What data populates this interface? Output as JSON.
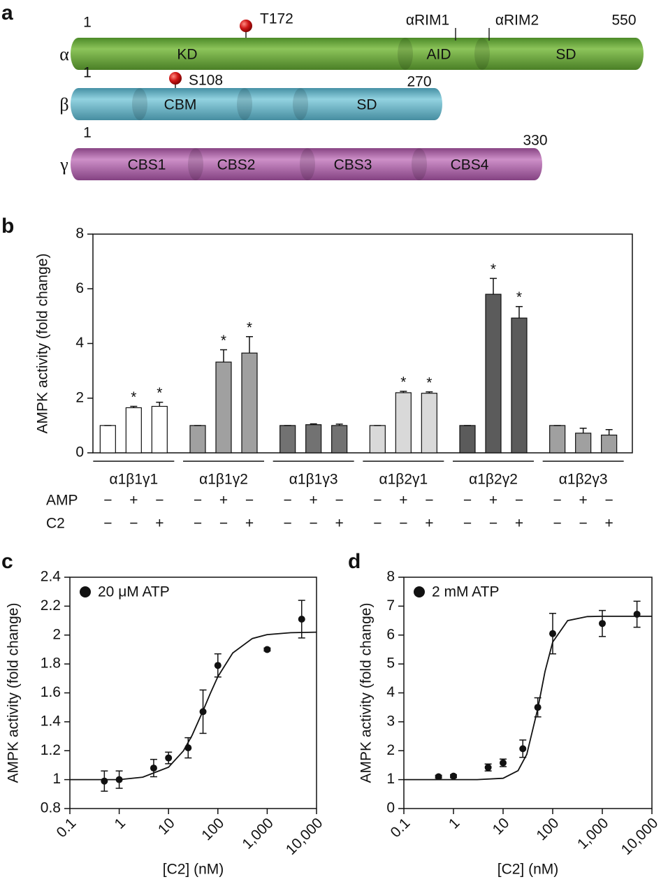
{
  "panel_a": {
    "label": "a",
    "proteins": [
      {
        "name": "α",
        "start": 1,
        "end": 550,
        "domains": [
          "KD",
          "AID",
          "SD"
        ],
        "sites": [
          "T172"
        ],
        "motifs": [
          "αRIM1",
          "αRIM2"
        ]
      },
      {
        "name": "β",
        "start": 1,
        "end": 270,
        "domains": [
          "CBM",
          "SD"
        ],
        "sites": [
          "S108"
        ]
      },
      {
        "name": "γ",
        "start": 1,
        "end": 330,
        "domains": [
          "CBS1",
          "CBS2",
          "CBS3",
          "CBS4"
        ]
      }
    ]
  },
  "chart_data": [
    {
      "type": "grouped_bar",
      "panel_label": "b",
      "ylabel": "AMPK activity (fold change)",
      "ylim": [
        0,
        8
      ],
      "yticks": [
        0,
        2,
        4,
        6,
        8
      ],
      "significance_label": "*",
      "groups": [
        {
          "name": "α1β1γ1",
          "color": "#ffffff",
          "values": [
            1,
            1.65,
            1.7
          ],
          "errors": [
            0,
            0.05,
            0.15
          ],
          "significant": [
            false,
            true,
            true
          ]
        },
        {
          "name": "α1β1γ2",
          "color": "#a0a0a0",
          "values": [
            1,
            3.32,
            3.65
          ],
          "errors": [
            0,
            0.45,
            0.6
          ],
          "significant": [
            false,
            true,
            true
          ]
        },
        {
          "name": "α1β1γ3",
          "color": "#727272",
          "values": [
            1,
            1.03,
            1.0
          ],
          "errors": [
            0,
            0.03,
            0.05
          ],
          "significant": [
            false,
            false,
            false
          ]
        },
        {
          "name": "α1β2γ1",
          "color": "#d9d9d9",
          "values": [
            1,
            2.2,
            2.18
          ],
          "errors": [
            0,
            0.05,
            0.05
          ],
          "significant": [
            false,
            true,
            true
          ]
        },
        {
          "name": "α1β2γ2",
          "color": "#5b5b5b",
          "values": [
            1,
            5.8,
            4.93
          ],
          "errors": [
            0,
            0.58,
            0.42
          ],
          "significant": [
            false,
            true,
            true
          ]
        },
        {
          "name": "α1β2γ3",
          "color": "#a0a0a0",
          "values": [
            1,
            0.72,
            0.65
          ],
          "errors": [
            0,
            0.18,
            0.2
          ],
          "significant": [
            false,
            false,
            false
          ]
        }
      ],
      "conditions": [
        {
          "name": "AMP",
          "signs": [
            "−",
            "+",
            "−"
          ]
        },
        {
          "name": "C2",
          "signs": [
            "−",
            "−",
            "+"
          ]
        }
      ]
    },
    {
      "type": "scatter",
      "panel_label": "c",
      "xlabel": "[C2] (nM)",
      "ylabel": "AMPK activity (fold change)",
      "xlog": true,
      "xlim": [
        0.1,
        10000
      ],
      "xticks": [
        0.1,
        1,
        10,
        100,
        {
          "value": 1000,
          "label": "1,000"
        },
        {
          "value": 10000,
          "label": "10,000"
        }
      ],
      "ylim": [
        0.8,
        2.4
      ],
      "yticks": [
        0.8,
        1,
        1.2,
        1.4,
        1.6,
        1.8,
        2,
        2.2,
        2.4
      ],
      "series": [
        {
          "name": "20 μM ATP",
          "color": "#111111",
          "x": [
            0.5,
            1,
            5,
            10,
            25,
            50,
            100,
            1000,
            5000
          ],
          "values": [
            0.99,
            1.0,
            1.08,
            1.15,
            1.22,
            1.47,
            1.79,
            1.9,
            2.11
          ],
          "errors": [
            0.07,
            0.06,
            0.06,
            0.04,
            0.07,
            0.15,
            0.08,
            0.01,
            0.13
          ]
        }
      ],
      "fit": {
        "color": "#111111",
        "x": [
          0.1,
          1,
          3,
          10,
          20,
          30,
          50,
          70,
          100,
          200,
          500,
          1000,
          3000,
          10000
        ],
        "values": [
          1,
          1,
          1.017,
          1.086,
          1.199,
          1.306,
          1.476,
          1.595,
          1.712,
          1.876,
          1.976,
          2.003,
          2.016,
          2.02
        ]
      }
    },
    {
      "type": "scatter",
      "panel_label": "d",
      "xlabel": "[C2] (nM)",
      "ylabel": "AMPK activity (fold change)",
      "xlog": true,
      "xlim": [
        0.1,
        10000
      ],
      "xticks": [
        0.1,
        1,
        10,
        100,
        {
          "value": 1000,
          "label": "1,000"
        },
        {
          "value": 10000,
          "label": "10,000"
        }
      ],
      "ylim": [
        0,
        8
      ],
      "yticks": [
        0,
        1,
        2,
        3,
        4,
        5,
        6,
        7,
        8
      ],
      "series": [
        {
          "name": "2 mM ATP",
          "color": "#111111",
          "x": [
            0.5,
            1,
            5,
            10,
            25,
            50,
            100,
            1000,
            5000
          ],
          "values": [
            1.1,
            1.12,
            1.42,
            1.58,
            2.07,
            3.5,
            6.05,
            6.4,
            6.72
          ],
          "errors": [
            0.05,
            0.05,
            0.12,
            0.13,
            0.3,
            0.33,
            0.7,
            0.45,
            0.45
          ]
        }
      ],
      "fit": {
        "color": "#111111",
        "x": [
          0.1,
          1,
          3,
          10,
          20,
          30,
          50,
          70,
          100,
          200,
          500,
          1000,
          3000,
          10000
        ],
        "values": [
          1,
          1,
          1,
          1.047,
          1.31,
          1.875,
          3.45,
          4.74,
          5.76,
          6.5,
          6.64,
          6.65,
          6.65,
          6.65
        ]
      }
    }
  ]
}
